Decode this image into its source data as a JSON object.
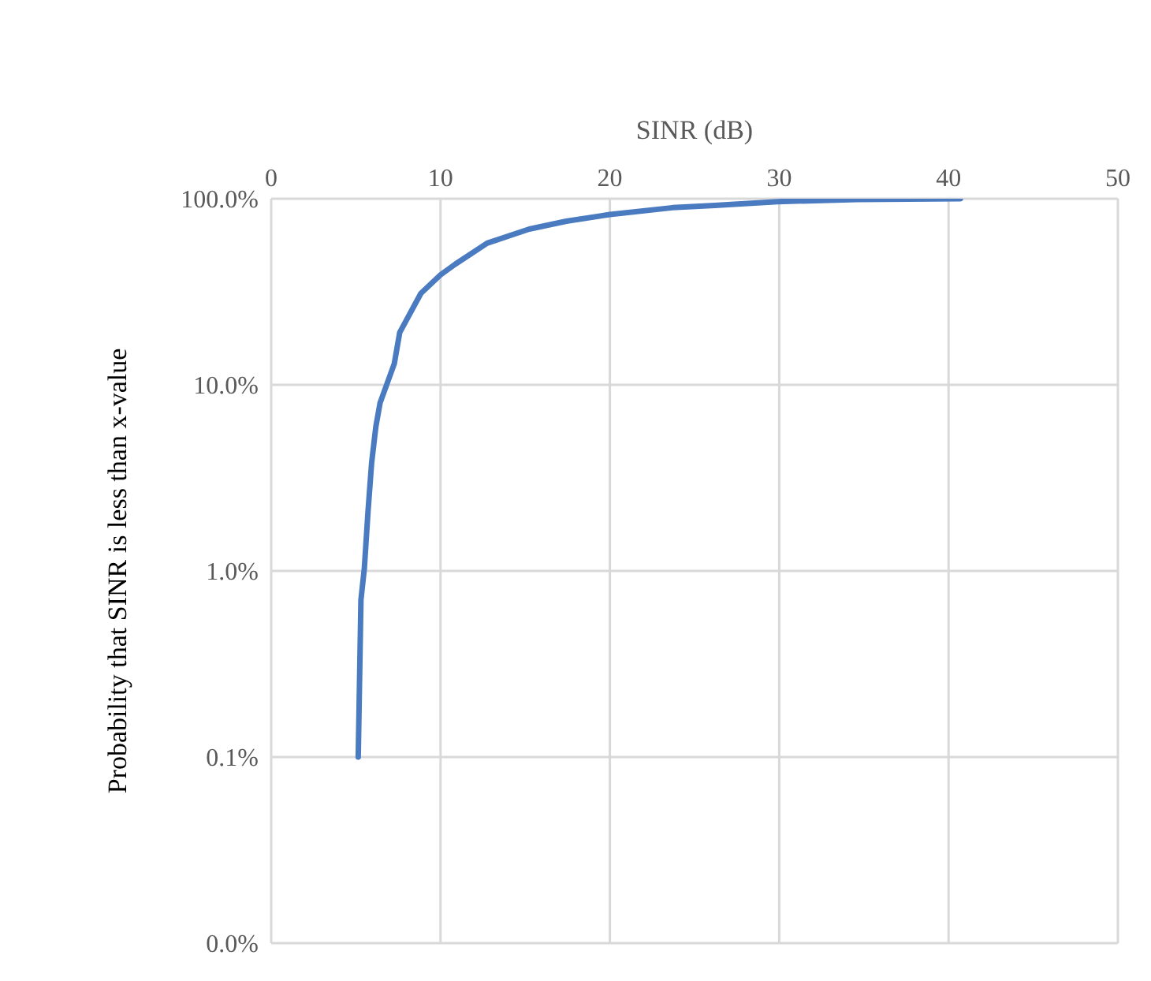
{
  "chart_data": {
    "type": "line",
    "xlabel": "SINR (dB)",
    "ylabel": "Probability that SINR is less than x-value",
    "log": "y",
    "grid": true,
    "legend": false,
    "marker": "none",
    "line_style": "solid",
    "xlim": [
      0,
      50
    ],
    "xticks": [
      0,
      10,
      20,
      30,
      40,
      50
    ],
    "ylim": [
      0.01,
      100
    ],
    "yticks": [
      {
        "value": 0.01,
        "label": "0.0%"
      },
      {
        "value": 0.1,
        "label": "0.1%"
      },
      {
        "value": 1,
        "label": "1.0%"
      },
      {
        "value": 10,
        "label": "10.0%"
      },
      {
        "value": 100,
        "label": "100.0%"
      }
    ],
    "x": [
      5.14,
      5.3,
      5.5,
      5.72,
      5.93,
      6.18,
      6.43,
      7.27,
      7.59,
      8.84,
      10,
      10.87,
      12.75,
      15.24,
      17.43,
      20,
      23.7,
      26.2,
      29.9,
      34.6,
      40.7
    ],
    "series": [
      {
        "color": "#4a7bc0",
        "values": [
          0.1,
          0.7,
          1.03,
          2.1,
          3.8,
          5.95,
          8,
          13,
          19.1,
          31,
          39,
          44.5,
          57.7,
          68.7,
          75.7,
          82.3,
          89.5,
          92,
          96.5,
          99,
          100
        ]
      }
    ]
  }
}
